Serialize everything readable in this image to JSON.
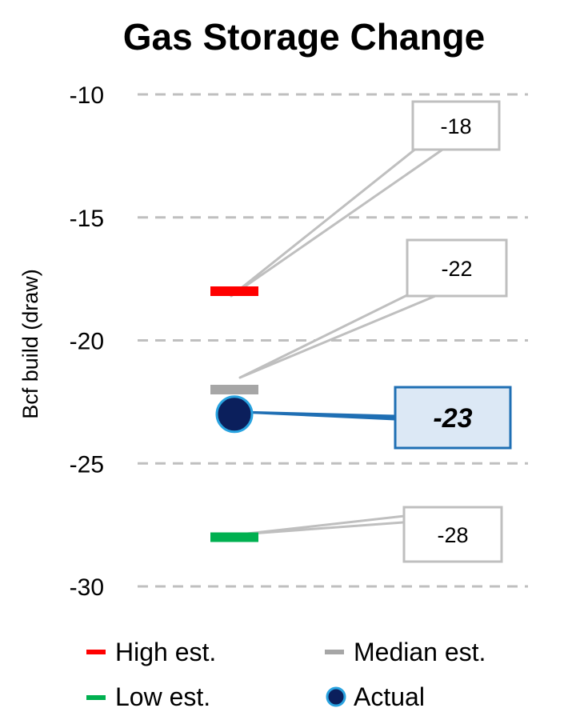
{
  "chart_data": {
    "type": "scatter",
    "title": "Gas Storage Change",
    "ylabel": "Bcf build (draw)",
    "ylim": [
      -30,
      -10
    ],
    "yticks": [
      -10,
      -15,
      -20,
      -25,
      -30
    ],
    "grid": true,
    "legend_position": "bottom",
    "series": [
      {
        "name": "High est.",
        "key": "high",
        "marker": "dash",
        "color": "#ff0000",
        "value": -18,
        "label": "-18"
      },
      {
        "name": "Median est.",
        "key": "median",
        "marker": "dash",
        "color": "#a6a6a6",
        "value": -22,
        "label": "-22"
      },
      {
        "name": "Actual",
        "key": "actual",
        "marker": "circle",
        "color": "#0b1f5c",
        "edge": "#29a3e0",
        "value": -23,
        "label": "-23"
      },
      {
        "name": "Low est.",
        "key": "low",
        "marker": "dash",
        "color": "#00b050",
        "value": -28,
        "label": "-28"
      }
    ],
    "legend": {
      "high": "High est.",
      "median": "Median est.",
      "low": "Low est.",
      "actual": "Actual"
    }
  }
}
